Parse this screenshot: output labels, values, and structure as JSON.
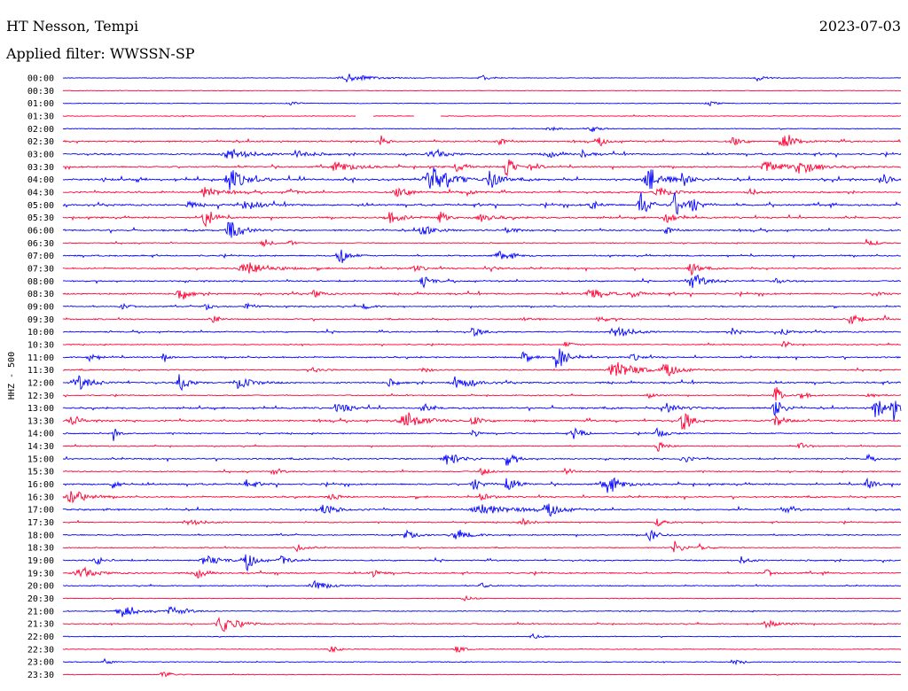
{
  "header": {
    "station": "HT Nesson, Tempi",
    "date": "2023-07-03",
    "filter_label": "Applied filter:",
    "filter_value": "WWSSN-SP"
  },
  "chart_data": {
    "type": "line",
    "title": "HT Nesson, Tempi",
    "ylabel": "HHZ - 500",
    "date": "2023-07-03",
    "filter": "WWSSN-SP",
    "colors": {
      "odd_half_hour": "#0000ff",
      "even_half_hour": "#ff0033"
    },
    "rows": [
      {
        "time": "00:00",
        "activity": 0.4,
        "events": [
          [
            0.34,
            5,
            3
          ],
          [
            0.5,
            4,
            1
          ],
          [
            0.83,
            4,
            1
          ]
        ]
      },
      {
        "time": "00:30",
        "activity": 0.3,
        "events": []
      },
      {
        "time": "01:00",
        "activity": 0.8,
        "events": [
          [
            0.27,
            3,
            1
          ],
          [
            0.77,
            3,
            1
          ]
        ]
      },
      {
        "time": "01:30",
        "activity": 1.0,
        "events": [],
        "gaps": [
          [
            0.35,
            0.37
          ],
          [
            0.42,
            0.45
          ]
        ]
      },
      {
        "time": "02:00",
        "activity": 1.0,
        "events": [
          [
            0.58,
            3,
            1
          ],
          [
            0.63,
            4,
            1
          ]
        ]
      },
      {
        "time": "02:30",
        "activity": 3.0,
        "events": [
          [
            0.38,
            6,
            0.5
          ],
          [
            0.52,
            4,
            1
          ],
          [
            0.64,
            4,
            1
          ],
          [
            0.8,
            5,
            1
          ],
          [
            0.86,
            7,
            2
          ]
        ]
      },
      {
        "time": "03:00",
        "activity": 3.0,
        "events": [
          [
            0.2,
            6,
            3
          ],
          [
            0.28,
            4,
            2
          ],
          [
            0.44,
            4,
            2
          ],
          [
            0.58,
            4,
            1
          ],
          [
            0.62,
            4,
            1
          ]
        ]
      },
      {
        "time": "03:30",
        "activity": 3.0,
        "events": [
          [
            0.33,
            5,
            3
          ],
          [
            0.47,
            5,
            1
          ],
          [
            0.53,
            12,
            1
          ],
          [
            0.56,
            5,
            1
          ],
          [
            0.84,
            6,
            3
          ],
          [
            0.88,
            9,
            2
          ]
        ]
      },
      {
        "time": "04:00",
        "activity": 4.0,
        "events": [
          [
            0.2,
            12,
            2
          ],
          [
            0.44,
            13,
            3
          ],
          [
            0.51,
            12,
            1
          ],
          [
            0.7,
            14,
            2
          ],
          [
            0.74,
            8,
            1
          ],
          [
            0.98,
            6,
            1
          ]
        ]
      },
      {
        "time": "04:30",
        "activity": 3.0,
        "events": [
          [
            0.17,
            6,
            2
          ],
          [
            0.27,
            4,
            1
          ],
          [
            0.4,
            5,
            2
          ],
          [
            0.48,
            5,
            1
          ],
          [
            0.71,
            6,
            2
          ],
          [
            0.82,
            4,
            1
          ]
        ]
      },
      {
        "time": "05:00",
        "activity": 3.5,
        "events": [
          [
            0.15,
            4,
            1
          ],
          [
            0.22,
            5,
            2
          ],
          [
            0.63,
            6,
            1
          ],
          [
            0.69,
            16,
            1
          ],
          [
            0.73,
            14,
            1
          ],
          [
            0.75,
            10,
            1
          ]
        ]
      },
      {
        "time": "05:30",
        "activity": 3.0,
        "events": [
          [
            0.17,
            14,
            1
          ],
          [
            0.39,
            6,
            2
          ],
          [
            0.45,
            7,
            1
          ],
          [
            0.5,
            4,
            2
          ],
          [
            0.72,
            8,
            1
          ]
        ]
      },
      {
        "time": "06:00",
        "activity": 3.0,
        "events": [
          [
            0.2,
            10,
            2
          ],
          [
            0.43,
            5,
            2
          ],
          [
            0.53,
            4,
            1
          ],
          [
            0.72,
            4,
            1
          ]
        ]
      },
      {
        "time": "06:30",
        "activity": 1.5,
        "events": [
          [
            0.24,
            5,
            1
          ],
          [
            0.27,
            4,
            0.5
          ],
          [
            0.96,
            5,
            1
          ]
        ]
      },
      {
        "time": "07:00",
        "activity": 2.5,
        "events": [
          [
            0.33,
            12,
            1
          ],
          [
            0.52,
            4,
            2
          ]
        ]
      },
      {
        "time": "07:30",
        "activity": 2.5,
        "events": [
          [
            0.22,
            8,
            3
          ],
          [
            0.75,
            8,
            1
          ],
          [
            0.42,
            4,
            1
          ],
          [
            0.51,
            3,
            1
          ]
        ]
      },
      {
        "time": "08:00",
        "activity": 2.5,
        "events": [
          [
            0.43,
            7,
            1
          ],
          [
            0.75,
            9,
            2
          ],
          [
            0.85,
            3,
            1
          ]
        ]
      },
      {
        "time": "08:30",
        "activity": 3.0,
        "events": [
          [
            0.14,
            9,
            1
          ],
          [
            0.3,
            4,
            1
          ],
          [
            0.63,
            6,
            2
          ],
          [
            0.68,
            4,
            1
          ],
          [
            0.97,
            4,
            1
          ]
        ]
      },
      {
        "time": "09:00",
        "activity": 2.0,
        "events": [
          [
            0.07,
            3,
            1
          ],
          [
            0.17,
            4,
            1
          ],
          [
            0.22,
            4,
            1
          ],
          [
            0.36,
            3,
            1
          ]
        ]
      },
      {
        "time": "09:30",
        "activity": 2.0,
        "events": [
          [
            0.18,
            5,
            0.5
          ],
          [
            0.55,
            4,
            1
          ],
          [
            0.64,
            4,
            1
          ],
          [
            0.94,
            10,
            1
          ],
          [
            0.98,
            6,
            0.3
          ]
        ]
      },
      {
        "time": "10:00",
        "activity": 2.5,
        "events": [
          [
            0.49,
            6,
            1
          ],
          [
            0.66,
            8,
            2
          ],
          [
            0.8,
            4,
            1
          ],
          [
            0.86,
            4,
            1
          ]
        ]
      },
      {
        "time": "10:30",
        "activity": 1.5,
        "events": [
          [
            0.86,
            5,
            0.5
          ],
          [
            0.6,
            3,
            1
          ]
        ]
      },
      {
        "time": "11:00",
        "activity": 2.5,
        "events": [
          [
            0.03,
            6,
            1
          ],
          [
            0.12,
            5,
            0.5
          ],
          [
            0.55,
            6,
            1
          ],
          [
            0.59,
            18,
            1
          ],
          [
            0.68,
            4,
            1
          ]
        ]
      },
      {
        "time": "11:30",
        "activity": 2.0,
        "events": [
          [
            0.66,
            10,
            3
          ],
          [
            0.72,
            6,
            2
          ],
          [
            0.3,
            3,
            1
          ],
          [
            0.43,
            3,
            1
          ]
        ]
      },
      {
        "time": "12:00",
        "activity": 3.0,
        "events": [
          [
            0.02,
            8,
            2
          ],
          [
            0.14,
            12,
            1
          ],
          [
            0.21,
            7,
            2
          ],
          [
            0.39,
            4,
            1
          ],
          [
            0.47,
            8,
            2
          ]
        ]
      },
      {
        "time": "12:30",
        "activity": 1.5,
        "events": [
          [
            0.85,
            14,
            0.5
          ],
          [
            0.88,
            5,
            1
          ],
          [
            0.96,
            4,
            1
          ],
          [
            0.7,
            3,
            1
          ]
        ]
      },
      {
        "time": "13:00",
        "activity": 3.0,
        "events": [
          [
            0.33,
            5,
            2
          ],
          [
            0.43,
            4,
            1
          ],
          [
            0.72,
            6,
            2
          ],
          [
            0.85,
            12,
            1
          ],
          [
            0.97,
            16,
            1
          ],
          [
            0.99,
            18,
            0.5
          ]
        ]
      },
      {
        "time": "13:30",
        "activity": 3.5,
        "events": [
          [
            0.01,
            8,
            1
          ],
          [
            0.41,
            8,
            3
          ],
          [
            0.49,
            5,
            1
          ],
          [
            0.74,
            14,
            1
          ],
          [
            0.85,
            8,
            1
          ]
        ]
      },
      {
        "time": "14:00",
        "activity": 2.0,
        "events": [
          [
            0.06,
            12,
            0.3
          ],
          [
            0.49,
            5,
            0.5
          ],
          [
            0.61,
            8,
            1
          ],
          [
            0.71,
            6,
            1
          ]
        ]
      },
      {
        "time": "14:30",
        "activity": 1.5,
        "events": [
          [
            0.71,
            6,
            1
          ],
          [
            0.88,
            4,
            1
          ]
        ]
      },
      {
        "time": "15:00",
        "activity": 2.5,
        "events": [
          [
            0.46,
            7,
            2
          ],
          [
            0.53,
            8,
            1
          ],
          [
            0.74,
            5,
            1
          ],
          [
            0.96,
            4,
            0.5
          ]
        ]
      },
      {
        "time": "15:30",
        "activity": 2.0,
        "events": [
          [
            0.25,
            4,
            1
          ],
          [
            0.5,
            4,
            1
          ],
          [
            0.6,
            4,
            1
          ]
        ]
      },
      {
        "time": "16:00",
        "activity": 3.0,
        "events": [
          [
            0.06,
            5,
            1
          ],
          [
            0.22,
            5,
            1
          ],
          [
            0.49,
            8,
            1
          ],
          [
            0.53,
            11,
            1
          ],
          [
            0.65,
            9,
            2
          ],
          [
            0.96,
            6,
            1
          ]
        ]
      },
      {
        "time": "16:30",
        "activity": 2.5,
        "events": [
          [
            0.01,
            9,
            2
          ],
          [
            0.32,
            5,
            1
          ],
          [
            0.5,
            4,
            1
          ]
        ]
      },
      {
        "time": "17:00",
        "activity": 3.0,
        "events": [
          [
            0.05,
            4,
            0.5
          ],
          [
            0.31,
            6,
            2
          ],
          [
            0.5,
            6,
            4
          ],
          [
            0.58,
            6,
            2
          ],
          [
            0.86,
            5,
            1
          ]
        ]
      },
      {
        "time": "17:30",
        "activity": 2.0,
        "events": [
          [
            0.15,
            4,
            2
          ],
          [
            0.55,
            4,
            1
          ],
          [
            0.71,
            4,
            1
          ]
        ]
      },
      {
        "time": "18:00",
        "activity": 2.0,
        "events": [
          [
            0.41,
            6,
            1
          ],
          [
            0.47,
            5,
            2
          ],
          [
            0.7,
            8,
            1
          ]
        ]
      },
      {
        "time": "18:30",
        "activity": 1.5,
        "events": [
          [
            0.28,
            4,
            1
          ],
          [
            0.73,
            8,
            1
          ],
          [
            0.76,
            4,
            1
          ]
        ]
      },
      {
        "time": "19:00",
        "activity": 2.5,
        "events": [
          [
            0.04,
            5,
            1
          ],
          [
            0.17,
            6,
            2
          ],
          [
            0.22,
            10,
            1
          ],
          [
            0.26,
            6,
            1
          ],
          [
            0.81,
            4,
            1
          ]
        ]
      },
      {
        "time": "19:30",
        "activity": 2.5,
        "events": [
          [
            0.02,
            6,
            2
          ],
          [
            0.16,
            6,
            1
          ],
          [
            0.37,
            4,
            1
          ],
          [
            0.84,
            4,
            1
          ]
        ]
      },
      {
        "time": "20:00",
        "activity": 1.5,
        "events": [
          [
            0.3,
            5,
            2
          ],
          [
            0.5,
            3,
            1
          ]
        ]
      },
      {
        "time": "20:30",
        "activity": 1.0,
        "events": [
          [
            0.48,
            3,
            1
          ]
        ]
      },
      {
        "time": "21:00",
        "activity": 1.5,
        "events": [
          [
            0.07,
            7,
            2
          ],
          [
            0.13,
            5,
            2
          ]
        ]
      },
      {
        "time": "21:30",
        "activity": 1.5,
        "events": [
          [
            0.19,
            10,
            2
          ],
          [
            0.84,
            4,
            2
          ]
        ]
      },
      {
        "time": "22:00",
        "activity": 1.0,
        "events": [
          [
            0.56,
            3,
            1
          ]
        ]
      },
      {
        "time": "22:30",
        "activity": 1.0,
        "events": [
          [
            0.32,
            4,
            1
          ],
          [
            0.47,
            4,
            1
          ]
        ]
      },
      {
        "time": "23:00",
        "activity": 1.0,
        "events": [
          [
            0.05,
            3,
            1
          ],
          [
            0.8,
            3,
            1
          ]
        ]
      },
      {
        "time": "23:30",
        "activity": 0.8,
        "events": [
          [
            0.12,
            5,
            1
          ]
        ]
      }
    ]
  }
}
